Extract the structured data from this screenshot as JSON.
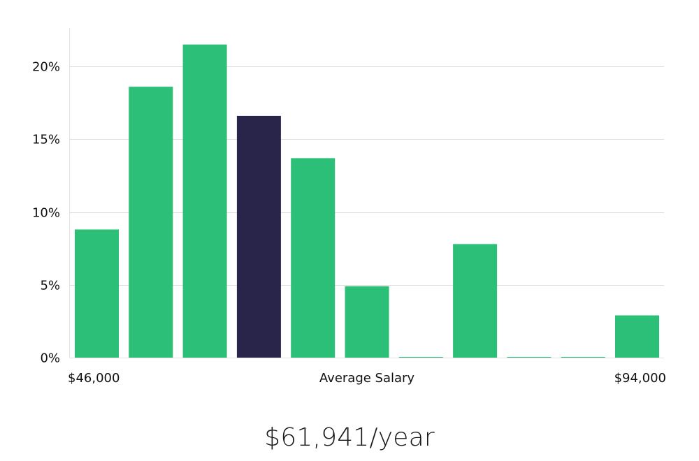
{
  "chart_data": {
    "type": "bar",
    "title": "",
    "xlabel": "Average Salary",
    "ylabel": "",
    "x_min_label": "$46,000",
    "x_max_label": "$94,000",
    "ylim": [
      0,
      22.5
    ],
    "yticks": [
      0,
      5,
      10,
      15,
      20
    ],
    "ytick_labels": [
      "0%",
      "5%",
      "10%",
      "15%",
      "20%"
    ],
    "grid": true,
    "values": [
      8.8,
      18.6,
      21.5,
      16.6,
      13.7,
      4.9,
      0.05,
      7.8,
      0.05,
      0.05,
      2.9
    ],
    "highlight_index": 3,
    "colors": {
      "bar": "#2bbf77",
      "highlight": "#29254a",
      "grid": "#dddddd",
      "axis": "#e2e2e2"
    }
  },
  "summary": {
    "value": "$61,941/year"
  }
}
